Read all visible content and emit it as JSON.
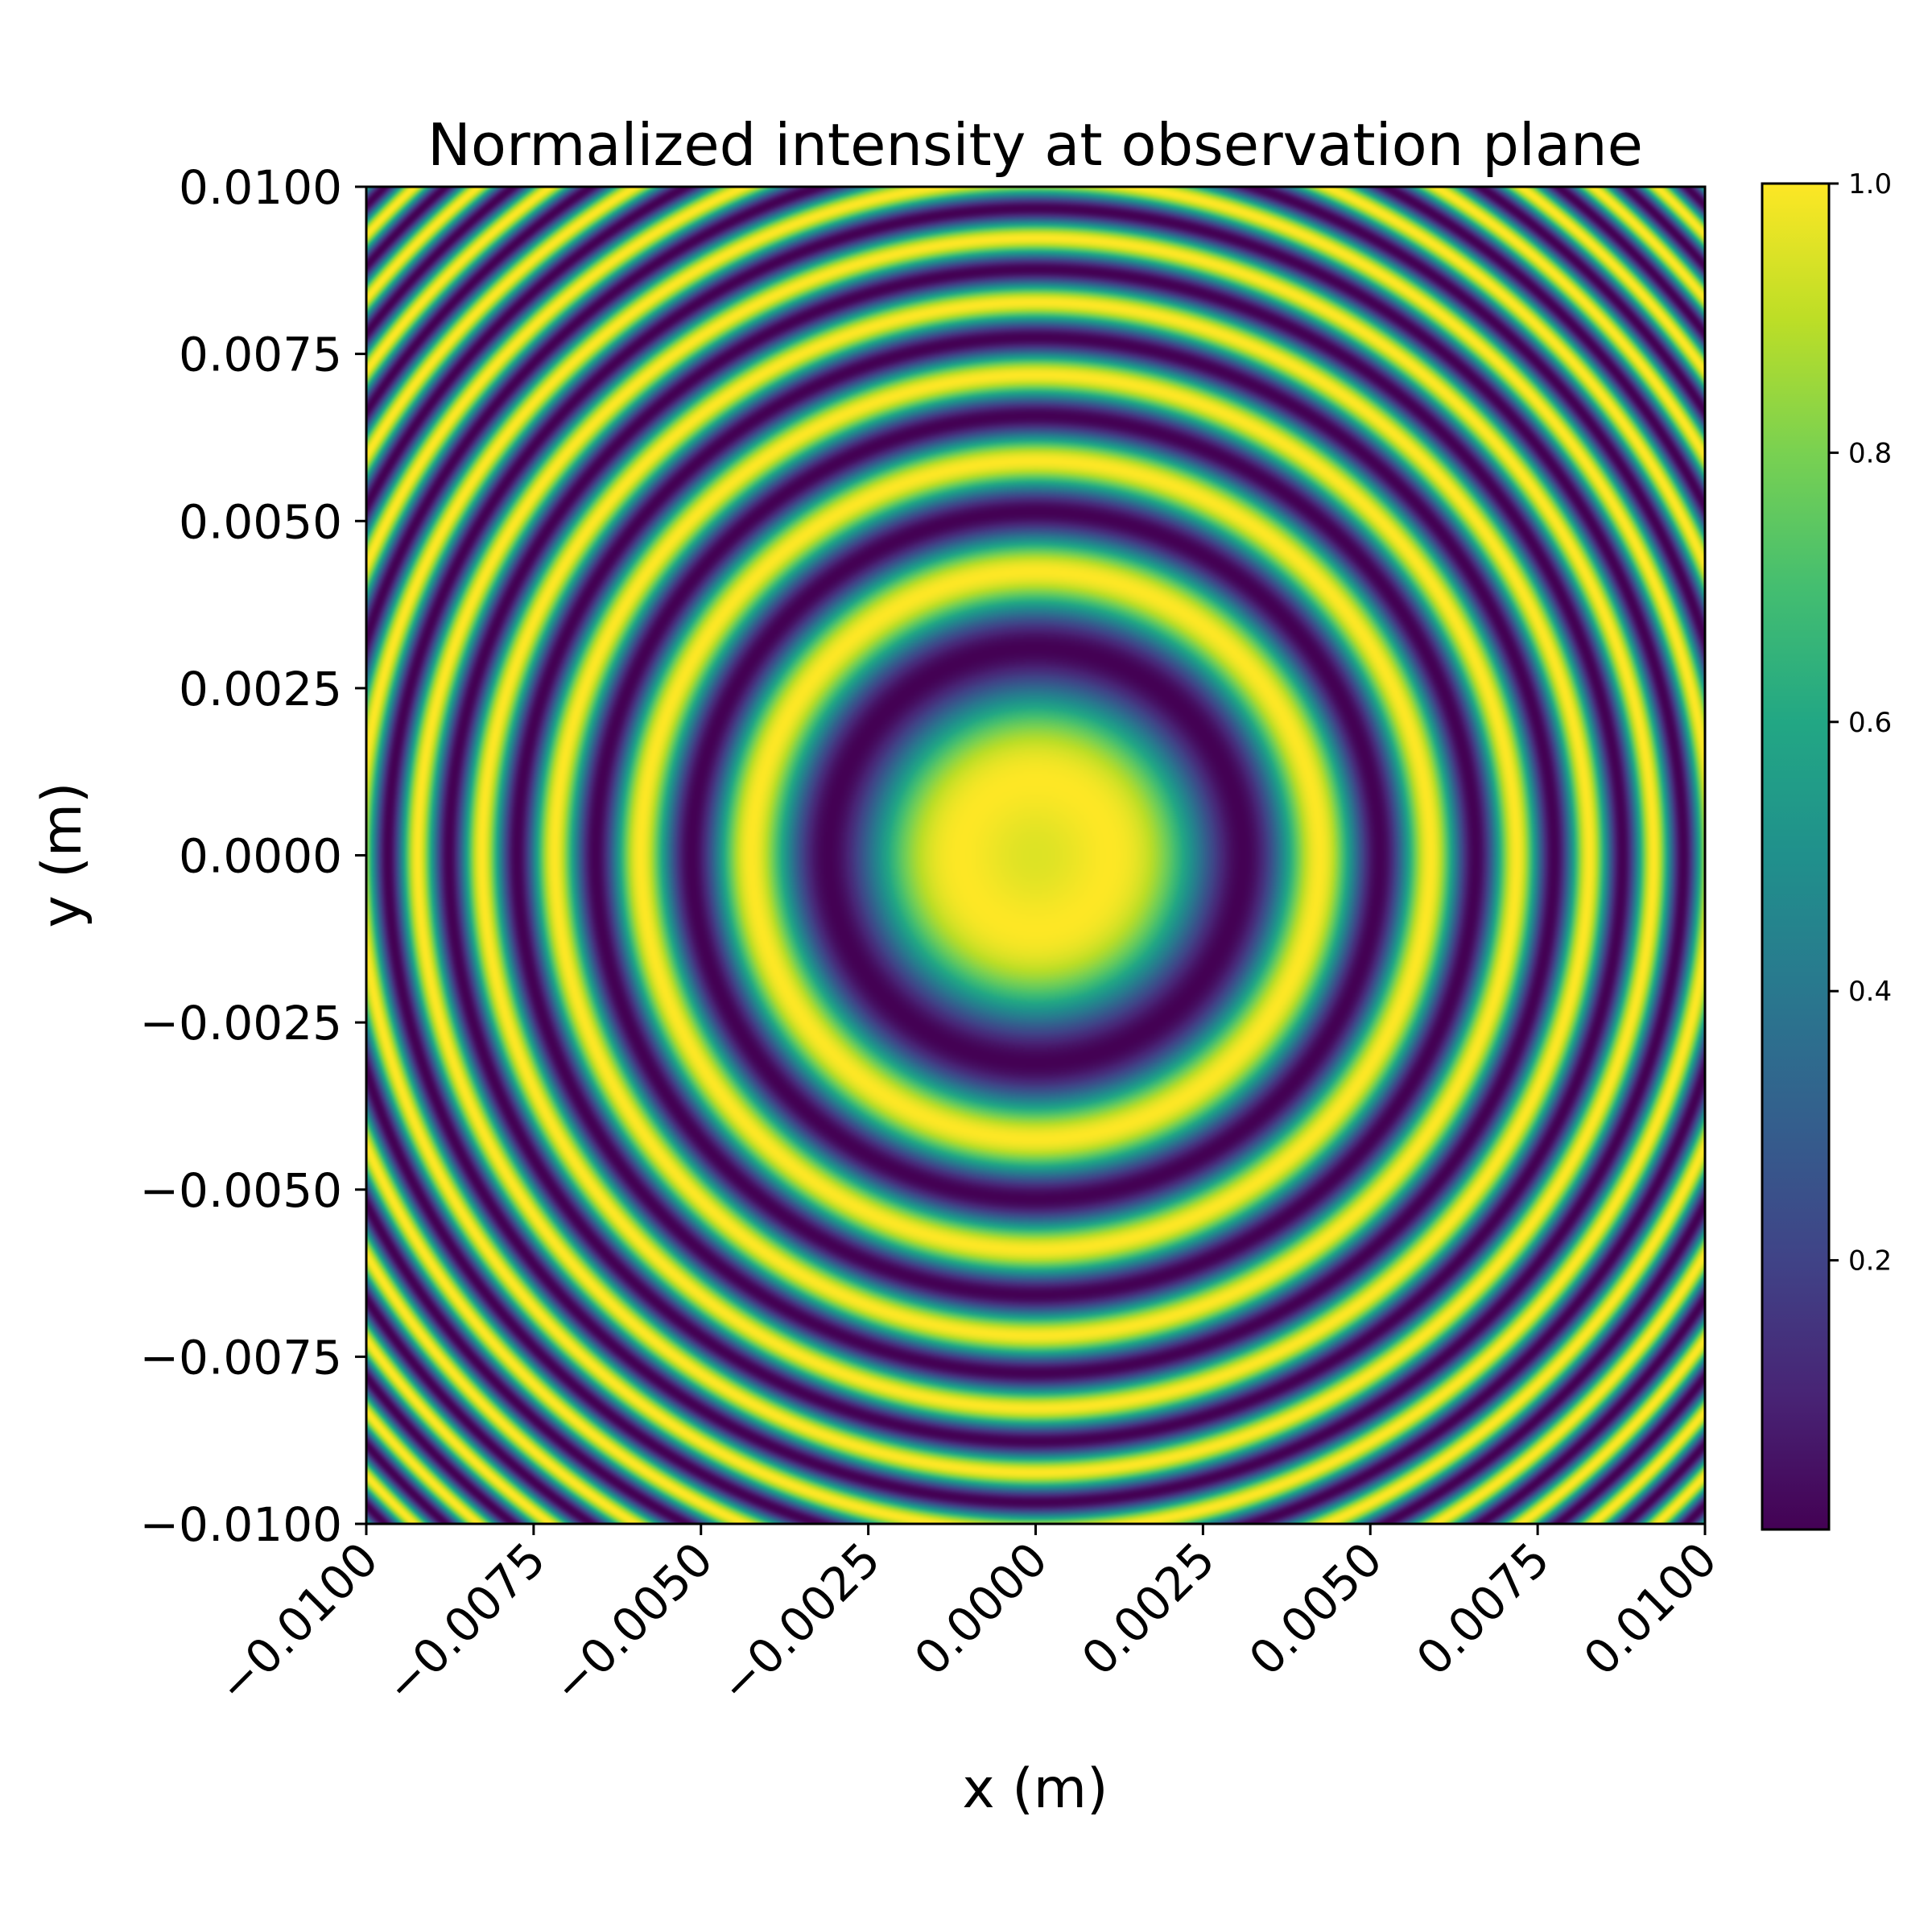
{
  "chart_data": {
    "type": "heatmap",
    "title": "Normalized intensity at observation plane",
    "xlabel": "x (m)",
    "ylabel": "y (m)",
    "xlim": [
      -0.01,
      0.01
    ],
    "ylim": [
      -0.01,
      0.01
    ],
    "x_ticks": [
      "−0.0100",
      "−0.0075",
      "−0.0050",
      "−0.0025",
      "0.0000",
      "0.0025",
      "0.0050",
      "0.0075",
      "0.0100"
    ],
    "x_tick_values": [
      -0.01,
      -0.0075,
      -0.005,
      -0.0025,
      0.0,
      0.0025,
      0.005,
      0.0075,
      0.01
    ],
    "y_ticks": [
      "0.0100",
      "0.0075",
      "0.0050",
      "0.0025",
      "0.0000",
      "−0.0025",
      "−0.0050",
      "−0.0075",
      "−0.0100"
    ],
    "y_tick_values": [
      0.01,
      0.0075,
      0.005,
      0.0025,
      0.0,
      -0.0025,
      -0.005,
      -0.0075,
      -0.01
    ],
    "colormap": "viridis",
    "colorbar": {
      "range": [
        0.0,
        1.0
      ],
      "ticks": [
        "0.2",
        "0.4",
        "0.6",
        "0.8",
        "1.0"
      ],
      "tick_values": [
        0.2,
        0.4,
        0.6,
        0.8,
        1.0
      ]
    },
    "pattern": {
      "description_kind": "concentric circular fringes (Fresnel zone pattern)",
      "center": [
        0.0,
        0.0
      ],
      "center_intensity": 0.95,
      "first_dark_ring_radius": 0.0031,
      "first_bright_ring_radius": 0.0048,
      "intensity_formula": "sin^2(k * r^2 + phi)"
    }
  }
}
